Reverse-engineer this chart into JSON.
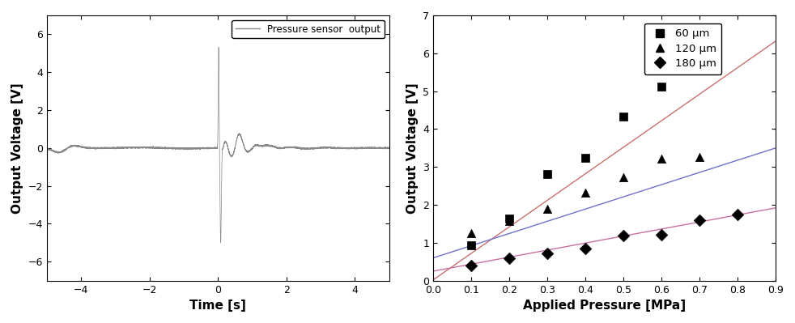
{
  "left_plot": {
    "xlabel": "Time [s]",
    "ylabel": "Output Voltage [V]",
    "xlim": [
      -5,
      5
    ],
    "ylim": [
      -7,
      7
    ],
    "yticks": [
      -6,
      -4,
      -2,
      0,
      2,
      4,
      6
    ],
    "xticks": [
      -4,
      -2,
      0,
      2,
      4
    ],
    "legend_label": "Pressure sensor  output",
    "line_color": "#888888"
  },
  "right_plot": {
    "xlabel": "Applied Pressure [MPa]",
    "ylabel": "Output Voltage [V]",
    "xlim": [
      0.0,
      0.9
    ],
    "ylim": [
      0,
      7
    ],
    "yticks": [
      0,
      1,
      2,
      3,
      4,
      5,
      6,
      7
    ],
    "xticks": [
      0.0,
      0.1,
      0.2,
      0.3,
      0.4,
      0.5,
      0.6,
      0.7,
      0.8,
      0.9
    ],
    "series": [
      {
        "label": "60 μm",
        "marker": "s",
        "color": "#000000",
        "line_color": "#c87070",
        "x": [
          0.1,
          0.2,
          0.3,
          0.4,
          0.5,
          0.6
        ],
        "y": [
          0.93,
          1.63,
          2.82,
          3.23,
          4.32,
          5.12
        ],
        "fit_x0": 0.0,
        "fit_x1": 0.9,
        "fit_y0": 0.02,
        "fit_y1": 6.32
      },
      {
        "label": "120 μm",
        "marker": "^",
        "color": "#000000",
        "line_color": "#7070c8",
        "x": [
          0.1,
          0.2,
          0.3,
          0.4,
          0.5,
          0.6,
          0.7
        ],
        "y": [
          1.25,
          1.58,
          1.9,
          2.33,
          2.72,
          3.22,
          3.25
        ],
        "fit_x0": 0.0,
        "fit_x1": 0.9,
        "fit_y0": 0.6,
        "fit_y1": 3.5
      },
      {
        "label": "180 μm",
        "marker": "D",
        "color": "#000000",
        "line_color": "#c870a0",
        "x": [
          0.1,
          0.2,
          0.3,
          0.4,
          0.5,
          0.6,
          0.7,
          0.8
        ],
        "y": [
          0.4,
          0.6,
          0.73,
          0.85,
          1.18,
          1.22,
          1.6,
          1.75
        ],
        "fit_x0": 0.0,
        "fit_x1": 0.9,
        "fit_y0": 0.25,
        "fit_y1": 1.92
      }
    ]
  }
}
